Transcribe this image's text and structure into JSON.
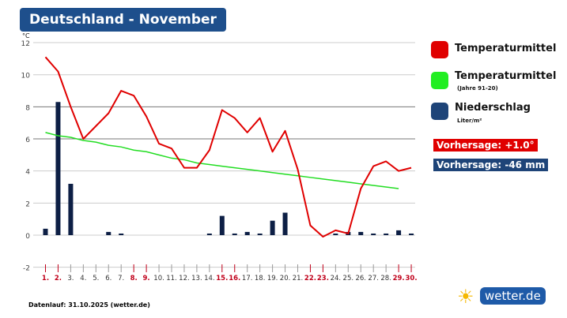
{
  "title": "Deutschland - November",
  "legend": {
    "temp": "Temperaturmittel",
    "norm": "Temperaturmittel",
    "norm_sub": "(Jahre 91-20)",
    "precip": "Niederschlag",
    "precip_sub": "Liter/m²"
  },
  "forecast": {
    "temp": "Vorhersage: +1.0°",
    "precip": "Vorhersage: -46 mm"
  },
  "footer": "Datenlauf: 31.10.2025 (wetter.de)",
  "logo": "wetter.de",
  "colors": {
    "temp": "#e00000",
    "norm": "#22dd22",
    "precip": "#0d1f45",
    "title": "#1e4f8c",
    "weekend": "#c0001a"
  },
  "chart_data": {
    "type": "line+bar",
    "ylabel": "°C",
    "ylim": [
      -2,
      12
    ],
    "yticks": [
      -2,
      0,
      2,
      4,
      6,
      8,
      10,
      12
    ],
    "grid": true,
    "categories": [
      "1.",
      "2.",
      "3.",
      "4.",
      "5.",
      "6.",
      "7.",
      "8.",
      "9.",
      "10.",
      "11.",
      "12.",
      "13.",
      "14.",
      "15.",
      "16.",
      "17.",
      "18.",
      "19.",
      "20.",
      "21.",
      "22.",
      "23.",
      "24.",
      "25.",
      "26.",
      "27.",
      "28.",
      "29.",
      "30."
    ],
    "weekend_days": [
      1,
      2,
      8,
      9,
      15,
      16,
      22,
      23,
      29,
      30
    ],
    "series": [
      {
        "name": "Temperaturmittel",
        "type": "line",
        "values": [
          11.1,
          10.2,
          8.0,
          6.0,
          6.8,
          7.6,
          9.0,
          8.7,
          7.4,
          5.7,
          5.4,
          4.2,
          4.2,
          5.3,
          7.8,
          7.3,
          6.4,
          7.3,
          5.2,
          6.5,
          4.1,
          0.6,
          -0.1,
          0.3,
          0.1,
          2.9,
          4.3,
          4.6,
          4.0,
          4.2
        ]
      },
      {
        "name": "Temperaturmittel (Jahre 91-20)",
        "type": "line",
        "values": [
          6.4,
          6.2,
          6.1,
          5.9,
          5.8,
          5.6,
          5.5,
          5.3,
          5.2,
          5.0,
          4.8,
          4.7,
          4.5,
          4.4,
          4.3,
          4.2,
          4.1,
          4.0,
          3.9,
          3.8,
          3.7,
          3.6,
          3.5,
          3.4,
          3.3,
          3.2,
          3.1,
          3.0,
          2.9,
          null
        ]
      },
      {
        "name": "Niederschlag",
        "type": "bar",
        "values": [
          0.4,
          8.3,
          3.2,
          0,
          0,
          0.2,
          0.1,
          0,
          0,
          0,
          0,
          0,
          0,
          0.1,
          1.2,
          0.1,
          0.2,
          0.1,
          0.9,
          1.4,
          0,
          0,
          0,
          0.1,
          0.2,
          0.2,
          0.1,
          0.1,
          0.3,
          0.1
        ]
      }
    ]
  }
}
